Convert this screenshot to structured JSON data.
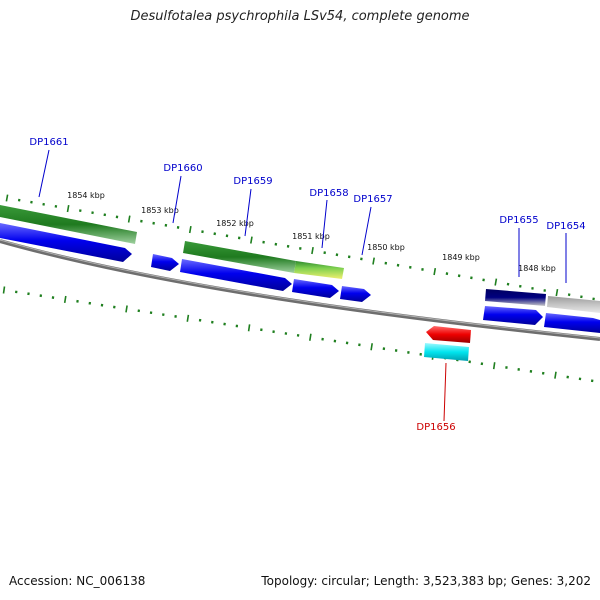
{
  "title": "Desulfotalea psychrophila LSv54, complete genome",
  "footer": {
    "accession": "Accession: NC_006138",
    "summary": "Topology: circular; Length: 3,523,383 bp; Genes: 3,202"
  },
  "kbp_labels": [
    "1854 kbp",
    "1853 kbp",
    "1852 kbp",
    "1851 kbp",
    "1850 kbp",
    "1849 kbp",
    "1848 kbp"
  ],
  "genes": [
    {
      "name": "DP1661",
      "color": "#0000cc"
    },
    {
      "name": "DP1660",
      "color": "#0000cc"
    },
    {
      "name": "DP1659",
      "color": "#0000cc"
    },
    {
      "name": "DP1658",
      "color": "#0000cc"
    },
    {
      "name": "DP1657",
      "color": "#0000cc"
    },
    {
      "name": "DP1655",
      "color": "#0000cc"
    },
    {
      "name": "DP1654",
      "color": "#0000cc"
    },
    {
      "name": "DP1656",
      "color": "#cc0000"
    }
  ],
  "colors": {
    "backbone": "#808080",
    "tick": "#1f7f1f",
    "cds_blue": "#0000ee",
    "green": "#2e8b2e",
    "red": "#ee0000",
    "cyan": "#00e5ee",
    "navy": "#000080",
    "gray": "#b8b8b8"
  }
}
